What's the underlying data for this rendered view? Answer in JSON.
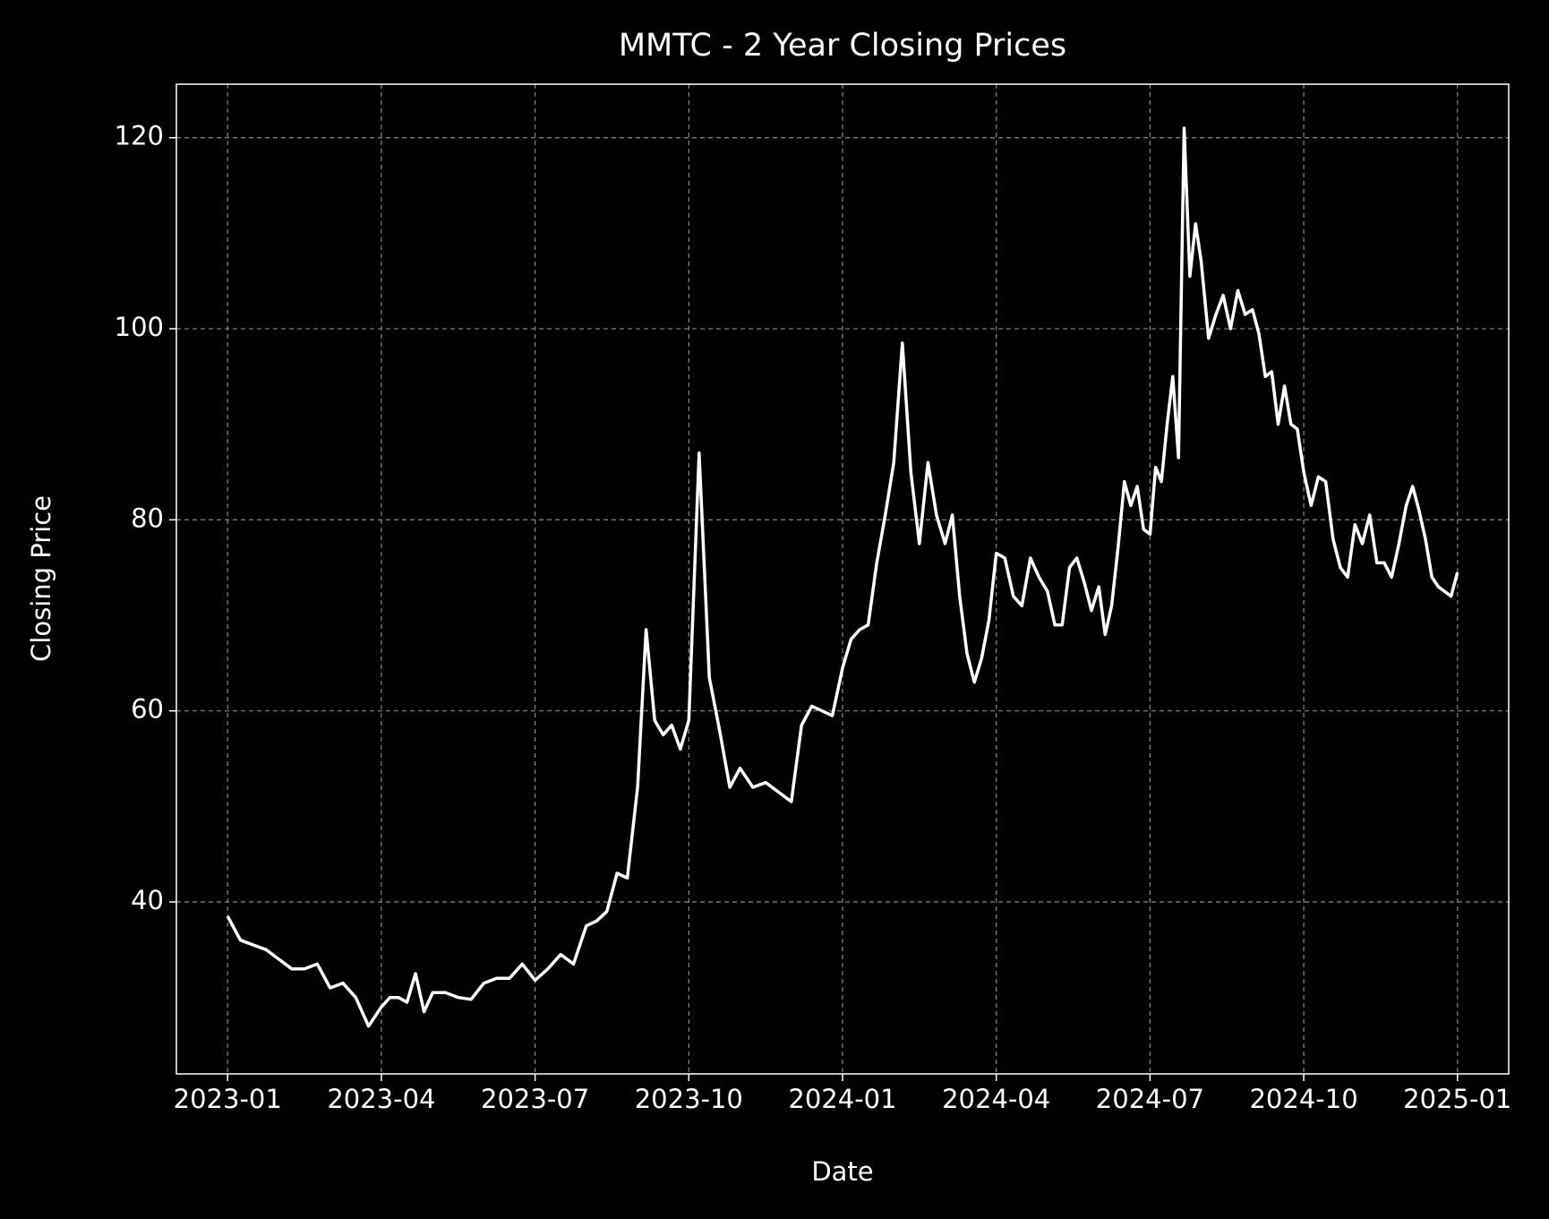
{
  "chart_data": {
    "type": "line",
    "title": "MMTC - 2 Year Closing Prices",
    "xlabel": "Date",
    "ylabel": "Closing Price",
    "x": [
      "2023-01",
      "2023-01",
      "2023-01",
      "2023-01",
      "2023-02",
      "2023-02",
      "2023-02",
      "2023-02",
      "2023-03",
      "2023-03",
      "2023-03",
      "2023-03",
      "2023-04",
      "2023-04",
      "2023-04",
      "2023-04",
      "2023-04",
      "2023-04",
      "2023-05",
      "2023-05",
      "2023-05",
      "2023-05",
      "2023-06",
      "2023-06",
      "2023-06",
      "2023-06",
      "2023-07",
      "2023-07",
      "2023-07",
      "2023-07",
      "2023-08",
      "2023-08",
      "2023-08",
      "2023-08",
      "2023-08",
      "2023-09",
      "2023-09",
      "2023-09",
      "2023-09",
      "2023-09",
      "2023-09",
      "2023-10",
      "2023-10",
      "2023-10",
      "2023-10",
      "2023-10",
      "2023-11",
      "2023-11",
      "2023-11",
      "2023-11",
      "2023-12",
      "2023-12",
      "2023-12",
      "2023-12",
      "2023-12",
      "2024-01",
      "2024-01",
      "2024-01",
      "2024-01",
      "2024-01",
      "2024-01",
      "2024-02",
      "2024-02",
      "2024-02",
      "2024-02",
      "2024-02",
      "2024-02",
      "2024-03",
      "2024-03",
      "2024-03",
      "2024-03",
      "2024-03",
      "2024-03",
      "2024-03",
      "2024-04",
      "2024-04",
      "2024-04",
      "2024-04",
      "2024-04",
      "2024-04",
      "2024-05",
      "2024-05",
      "2024-05",
      "2024-05",
      "2024-05",
      "2024-05",
      "2024-05",
      "2024-06",
      "2024-06",
      "2024-06",
      "2024-06",
      "2024-06",
      "2024-06",
      "2024-06",
      "2024-06",
      "2024-07",
      "2024-07",
      "2024-07",
      "2024-07",
      "2024-07",
      "2024-07",
      "2024-07",
      "2024-07",
      "2024-07",
      "2024-08",
      "2024-08",
      "2024-08",
      "2024-08",
      "2024-08",
      "2024-08",
      "2024-08",
      "2024-09",
      "2024-09",
      "2024-09",
      "2024-09",
      "2024-09",
      "2024-09",
      "2024-09",
      "2024-09",
      "2024-10",
      "2024-10",
      "2024-10",
      "2024-10",
      "2024-10",
      "2024-10",
      "2024-10",
      "2024-11",
      "2024-11",
      "2024-11",
      "2024-11",
      "2024-11",
      "2024-11",
      "2024-11",
      "2024-12",
      "2024-12",
      "2024-12",
      "2024-12",
      "2024-12",
      "2024-12",
      "2024-12",
      "2024-12",
      "2025-01"
    ],
    "values": [
      38.5,
      36,
      35.5,
      35,
      34,
      33,
      33,
      33.5,
      31,
      31.5,
      30,
      27,
      29,
      30,
      30,
      29.5,
      32.5,
      28.5,
      30.5,
      30.5,
      30,
      29.8,
      31.5,
      32,
      32,
      33.5,
      31.8,
      33,
      34.5,
      33.5,
      37.5,
      38,
      39,
      43,
      42.5,
      52,
      68.5,
      59,
      57.5,
      58.5,
      56,
      59,
      87,
      63.5,
      58,
      52,
      54,
      52,
      52.5,
      51.5,
      50.5,
      58.5,
      60.5,
      60,
      59.5,
      64.5,
      67.5,
      68.5,
      69,
      75.5,
      80.5,
      86,
      98.5,
      85,
      77.5,
      86,
      80.5,
      77.5,
      80.5,
      72,
      66,
      63,
      65.5,
      69.5,
      76.5,
      76,
      72,
      71,
      76,
      74,
      72.5,
      69,
      69,
      75,
      76,
      73.5,
      70.5,
      73,
      68,
      71,
      77,
      84,
      81.5,
      83.5,
      79,
      78.5,
      85.5,
      84,
      90,
      95,
      86.5,
      121,
      105.5,
      111,
      107,
      99,
      101.5,
      103.5,
      100,
      104,
      101.5,
      102,
      99.5,
      95,
      95.5,
      90,
      94,
      90,
      89.5,
      85,
      81.5,
      84.5,
      84,
      78,
      75,
      74,
      79.5,
      77.5,
      80.5,
      75.5,
      75.5,
      74,
      77.5,
      81.5,
      83.5,
      81,
      78,
      74,
      73,
      72.5,
      72,
      74.5
    ],
    "color": "#ffffff",
    "xlim": [
      "2022-12",
      "2025-02"
    ],
    "xticks": [
      "2023-01",
      "2023-04",
      "2023-07",
      "2023-10",
      "2024-01",
      "2024-04",
      "2024-07",
      "2024-10",
      "2025-01"
    ],
    "ylim": [
      22,
      125.6
    ],
    "yticks": [
      40,
      60,
      80,
      100,
      120
    ],
    "grid": true
  }
}
